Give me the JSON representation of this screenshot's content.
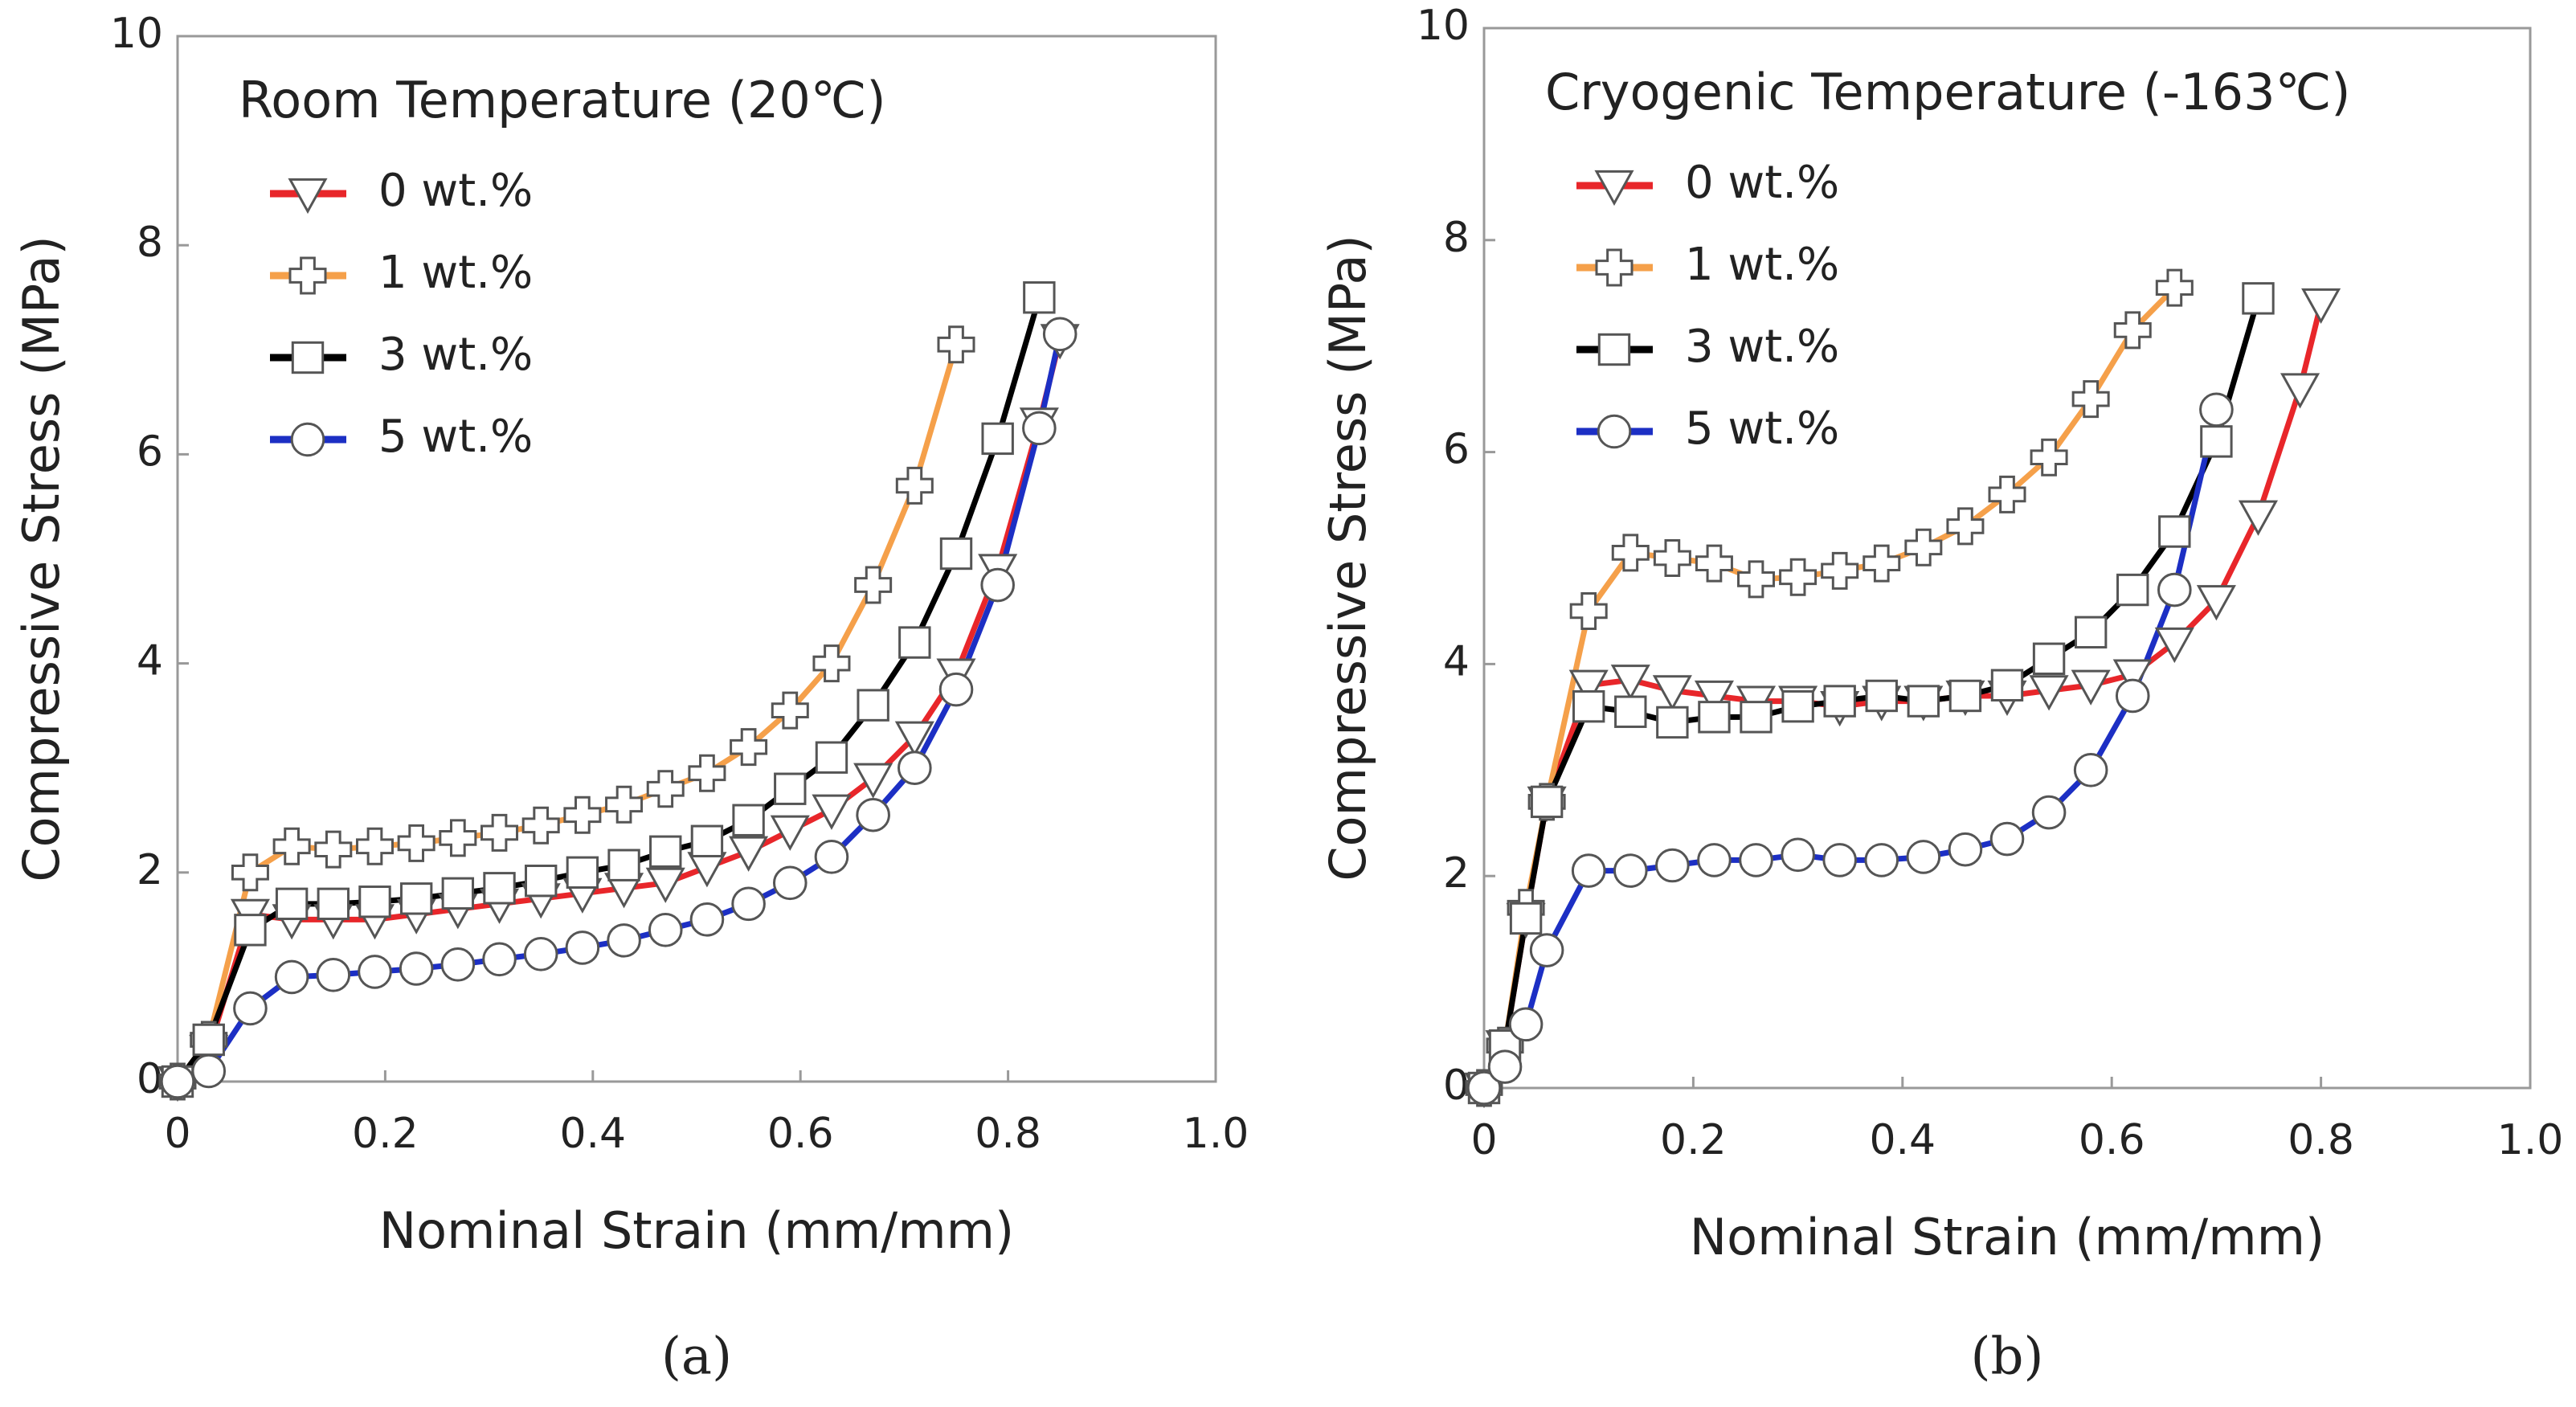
{
  "chart_data": [
    {
      "type": "line",
      "title": "Room Temperature (20℃)",
      "xlabel": "Nominal Strain (mm/mm)",
      "ylabel": "Compressive Stress (MPa)",
      "panel_label": "(a)",
      "xlim": [
        0,
        1
      ],
      "ylim": [
        0,
        10
      ],
      "xticks": [
        0,
        0.2,
        0.4,
        0.6,
        0.8,
        {
          "value": 1,
          "label": "1.0"
        }
      ],
      "yticks": [
        0,
        2,
        4,
        6,
        8,
        10
      ],
      "x": [
        0,
        0.03,
        0.07,
        0.11,
        0.15,
        0.19,
        0.23,
        0.27,
        0.31,
        0.35,
        0.39,
        0.43,
        0.47,
        0.51,
        0.55,
        0.59,
        0.63,
        0.67,
        0.71,
        0.75,
        0.79,
        0.83,
        0.85
      ],
      "series": [
        {
          "name": "0 wt.%",
          "color": "#e8262a",
          "marker": "triangle",
          "values": [
            0,
            0.3,
            1.6,
            1.55,
            1.55,
            1.55,
            1.6,
            1.65,
            1.7,
            1.75,
            1.8,
            1.85,
            1.9,
            2.05,
            2.2,
            2.4,
            2.6,
            2.9,
            3.3,
            3.9,
            4.9,
            6.3,
            7.1
          ]
        },
        {
          "name": "1 wt.%",
          "color": "#f5a04a",
          "marker": "plus",
          "values": [
            0,
            0.4,
            2.0,
            2.25,
            2.22,
            2.25,
            2.28,
            2.33,
            2.38,
            2.45,
            2.55,
            2.65,
            2.8,
            2.95,
            3.2,
            3.55,
            4.0,
            4.75,
            5.7,
            7.05,
            null,
            null,
            null
          ]
        },
        {
          "name": "3 wt.%",
          "color": "#000000",
          "marker": "square",
          "values": [
            0,
            0.4,
            1.45,
            1.7,
            1.7,
            1.72,
            1.75,
            1.8,
            1.85,
            1.92,
            2.0,
            2.07,
            2.2,
            2.3,
            2.5,
            2.8,
            3.1,
            3.6,
            4.2,
            5.05,
            6.15,
            7.5,
            null
          ]
        },
        {
          "name": "5 wt.%",
          "color": "#1c2fc4",
          "marker": "circle",
          "values": [
            0,
            0.1,
            0.7,
            1.0,
            1.02,
            1.05,
            1.08,
            1.12,
            1.17,
            1.22,
            1.28,
            1.35,
            1.45,
            1.55,
            1.7,
            1.9,
            2.15,
            2.55,
            3.0,
            3.75,
            4.75,
            6.25,
            7.15
          ]
        }
      ]
    },
    {
      "type": "line",
      "title": "Cryogenic Temperature (-163℃)",
      "xlabel": "Nominal Strain (mm/mm)",
      "ylabel": "Compressive Stress (MPa)",
      "panel_label": "(b)",
      "xlim": [
        0,
        1
      ],
      "ylim": [
        0,
        10
      ],
      "xticks": [
        0,
        0.2,
        0.4,
        0.6,
        0.8,
        {
          "value": 1,
          "label": "1.0"
        }
      ],
      "yticks": [
        0,
        2,
        4,
        6,
        8,
        10
      ],
      "x": [
        0,
        0.02,
        0.04,
        0.06,
        0.1,
        0.14,
        0.18,
        0.22,
        0.26,
        0.3,
        0.34,
        0.38,
        0.42,
        0.46,
        0.5,
        0.54,
        0.58,
        0.62,
        0.66,
        0.7,
        0.74,
        0.78,
        0.8
      ],
      "series": [
        {
          "name": "0 wt.%",
          "color": "#e8262a",
          "marker": "triangle",
          "values": [
            0,
            0.4,
            1.6,
            2.7,
            3.8,
            3.85,
            3.75,
            3.7,
            3.65,
            3.65,
            3.6,
            3.65,
            3.65,
            3.7,
            3.7,
            3.75,
            3.8,
            3.9,
            4.2,
            4.6,
            5.4,
            6.6,
            7.4
          ]
        },
        {
          "name": "1 wt.%",
          "color": "#f5a04a",
          "marker": "plus",
          "values": [
            0,
            0.4,
            1.7,
            2.7,
            4.5,
            5.05,
            5.0,
            4.95,
            4.8,
            4.82,
            4.88,
            4.95,
            5.1,
            5.3,
            5.6,
            5.95,
            6.5,
            7.15,
            7.55,
            null,
            null,
            null,
            null
          ]
        },
        {
          "name": "3 wt.%",
          "color": "#000000",
          "marker": "square",
          "values": [
            0,
            0.4,
            1.6,
            2.7,
            3.6,
            3.55,
            3.45,
            3.5,
            3.5,
            3.6,
            3.65,
            3.7,
            3.65,
            3.7,
            3.8,
            4.05,
            4.3,
            4.7,
            5.25,
            6.1,
            7.45,
            null,
            null
          ]
        },
        {
          "name": "5 wt.%",
          "color": "#1c2fc4",
          "marker": "circle",
          "values": [
            0,
            0.2,
            0.6,
            1.3,
            2.05,
            2.05,
            2.1,
            2.15,
            2.15,
            2.2,
            2.15,
            2.15,
            2.18,
            2.25,
            2.35,
            2.6,
            3.0,
            3.7,
            4.7,
            6.4,
            null,
            null,
            null
          ]
        }
      ]
    }
  ]
}
